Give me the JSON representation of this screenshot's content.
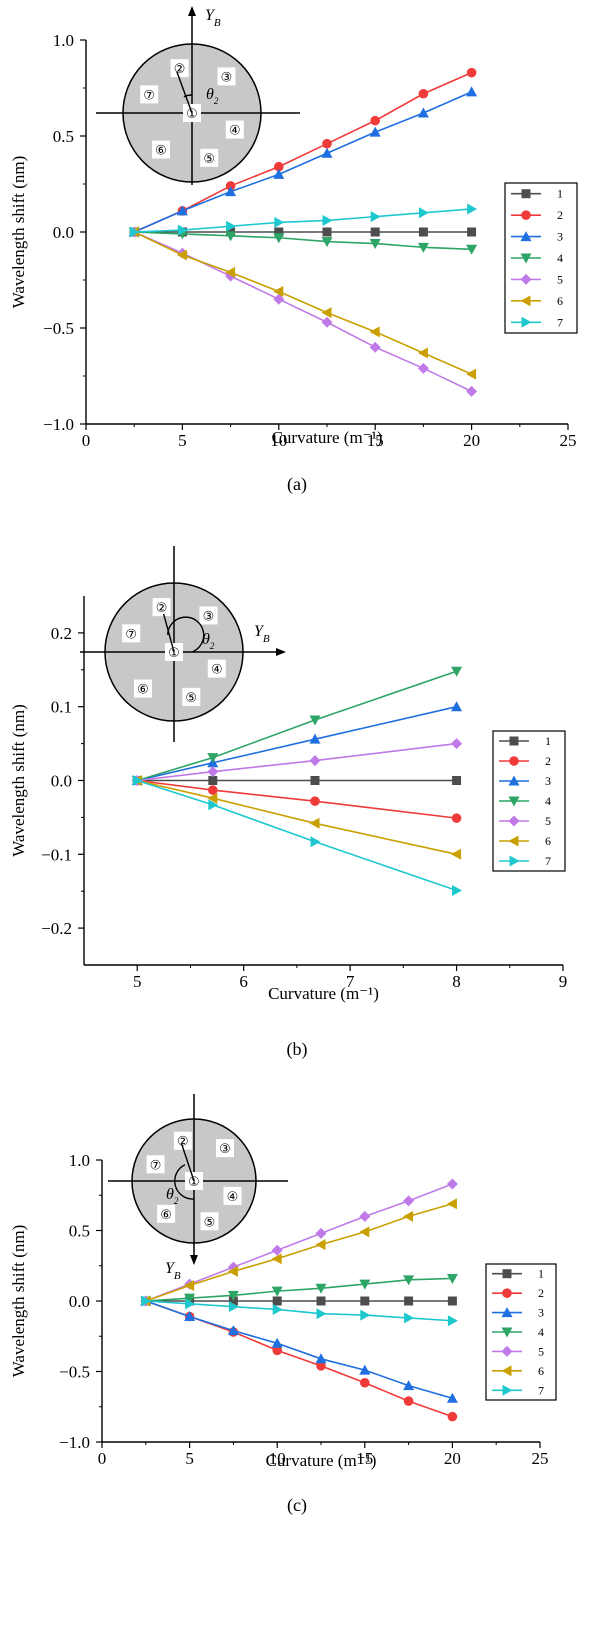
{
  "colors": {
    "1": "#4d4d4d",
    "2": "#f03a3a",
    "3": "#1f6fe0",
    "4": "#2ca566",
    "5": "#c07ae8",
    "6": "#c9a000",
    "7": "#1fc8cf"
  },
  "markers": {
    "1": "square",
    "2": "circle",
    "3": "triangle-up",
    "4": "triangle-down",
    "5": "diamond",
    "6": "triangle-left",
    "7": "triangle-right"
  },
  "chart_data": [
    {
      "type": "line",
      "caption": "(a)",
      "xlabel": "Curvature (m⁻¹)",
      "ylabel": "Wavelength shift (nm)",
      "xlim": [
        0,
        25
      ],
      "ylim": [
        -1.0,
        1.0
      ],
      "xticks": [
        0,
        5,
        10,
        15,
        20,
        25
      ],
      "yticks": [
        1.0,
        0.5,
        0.0,
        -0.5,
        -1.0
      ],
      "xtick_labels": [
        "0",
        "5",
        "10",
        "15",
        "20",
        "25"
      ],
      "ytick_labels": [
        "1.0",
        "0.5",
        "0.0",
        "−0.5",
        "−1.0"
      ],
      "legend_position": "right",
      "x": [
        2.5,
        5,
        7.5,
        10,
        12.5,
        15,
        17.5,
        20
      ],
      "series": [
        {
          "name": "1",
          "values": [
            0,
            0,
            0,
            0,
            0,
            0,
            0,
            0
          ]
        },
        {
          "name": "2",
          "values": [
            0,
            0.11,
            0.24,
            0.34,
            0.46,
            0.58,
            0.72,
            0.83
          ]
        },
        {
          "name": "3",
          "values": [
            0,
            0.11,
            0.21,
            0.3,
            0.41,
            0.52,
            0.62,
            0.73
          ]
        },
        {
          "name": "4",
          "values": [
            0,
            -0.01,
            -0.02,
            -0.03,
            -0.05,
            -0.06,
            -0.08,
            -0.09
          ]
        },
        {
          "name": "5",
          "values": [
            0,
            -0.11,
            -0.23,
            -0.35,
            -0.47,
            -0.6,
            -0.71,
            -0.83
          ]
        },
        {
          "name": "6",
          "values": [
            0,
            -0.12,
            -0.21,
            -0.31,
            -0.42,
            -0.52,
            -0.63,
            -0.74
          ]
        },
        {
          "name": "7",
          "values": [
            0,
            0.01,
            0.03,
            0.05,
            0.06,
            0.08,
            0.1,
            0.12
          ]
        }
      ],
      "inset": {
        "axis_label": "Y",
        "axis_sub": "B",
        "angle_label": "θ",
        "angle_sub": "2",
        "cores": [
          "①",
          "②",
          "③",
          "④",
          "⑤",
          "⑥",
          "⑦"
        ]
      }
    },
    {
      "type": "line",
      "caption": "(b)",
      "xlabel": "Curvature (m⁻¹)",
      "ylabel": "Wavelength shift (nm)",
      "xlim": [
        4.5,
        9
      ],
      "ylim": [
        -0.25,
        0.25
      ],
      "xticks": [
        5,
        6,
        7,
        8,
        9
      ],
      "yticks": [
        0.2,
        0.1,
        0.0,
        -0.1,
        -0.2
      ],
      "xtick_labels": [
        "5",
        "6",
        "7",
        "8",
        "9"
      ],
      "ytick_labels": [
        "0.2",
        "0.1",
        "0.0",
        "−0.1",
        "−0.2"
      ],
      "legend_position": "right",
      "x": [
        5,
        5.71,
        6.67,
        8
      ],
      "series": [
        {
          "name": "1",
          "values": [
            0,
            0,
            0,
            0
          ]
        },
        {
          "name": "2",
          "values": [
            0,
            -0.013,
            -0.028,
            -0.051
          ]
        },
        {
          "name": "3",
          "values": [
            0,
            0.024,
            0.056,
            0.1
          ]
        },
        {
          "name": "4",
          "values": [
            0,
            0.031,
            0.082,
            0.148
          ]
        },
        {
          "name": "5",
          "values": [
            0,
            0.012,
            0.027,
            0.05
          ]
        },
        {
          "name": "6",
          "values": [
            0,
            -0.024,
            -0.058,
            -0.1
          ]
        },
        {
          "name": "7",
          "values": [
            0,
            -0.033,
            -0.083,
            -0.149
          ]
        }
      ],
      "inset": {
        "axis_label": "Y",
        "axis_sub": "B",
        "angle_label": "θ",
        "angle_sub": "2",
        "cores": [
          "①",
          "②",
          "③",
          "④",
          "⑤",
          "⑥",
          "⑦"
        ]
      }
    },
    {
      "type": "line",
      "caption": "(c)",
      "xlabel": "Curvature (m⁻¹)",
      "ylabel": "Wavelength shift (nm)",
      "xlim": [
        0,
        25
      ],
      "ylim": [
        -1.0,
        1.0
      ],
      "xticks": [
        0,
        5,
        10,
        15,
        20,
        25
      ],
      "yticks": [
        1.0,
        0.5,
        0.0,
        -0.5,
        -1.0
      ],
      "xtick_labels": [
        "0",
        "5",
        "10",
        "15",
        "20",
        "25"
      ],
      "ytick_labels": [
        "1.0",
        "0.5",
        "0.0",
        "−0.5",
        "−1.0"
      ],
      "legend_position": "right",
      "x": [
        2.5,
        5,
        7.5,
        10,
        12.5,
        15,
        17.5,
        20
      ],
      "series": [
        {
          "name": "1",
          "values": [
            0,
            0,
            0,
            0,
            0,
            0,
            0,
            0
          ]
        },
        {
          "name": "2",
          "values": [
            0,
            -0.11,
            -0.22,
            -0.35,
            -0.46,
            -0.58,
            -0.71,
            -0.82
          ]
        },
        {
          "name": "3",
          "values": [
            0,
            -0.11,
            -0.21,
            -0.3,
            -0.41,
            -0.49,
            -0.6,
            -0.69
          ]
        },
        {
          "name": "4",
          "values": [
            0,
            0.02,
            0.04,
            0.07,
            0.09,
            0.12,
            0.15,
            0.16
          ]
        },
        {
          "name": "5",
          "values": [
            0,
            0.12,
            0.24,
            0.36,
            0.48,
            0.6,
            0.71,
            0.83
          ]
        },
        {
          "name": "6",
          "values": [
            0,
            0.11,
            0.21,
            0.3,
            0.4,
            0.49,
            0.6,
            0.69
          ]
        },
        {
          "name": "7",
          "values": [
            0,
            -0.02,
            -0.04,
            -0.06,
            -0.09,
            -0.1,
            -0.12,
            -0.14
          ]
        }
      ],
      "inset": {
        "axis_label": "Y",
        "axis_sub": "B",
        "angle_label": "θ",
        "angle_sub": "2",
        "cores": [
          "①",
          "②",
          "③",
          "④",
          "⑤",
          "⑥",
          "⑦"
        ]
      }
    }
  ]
}
